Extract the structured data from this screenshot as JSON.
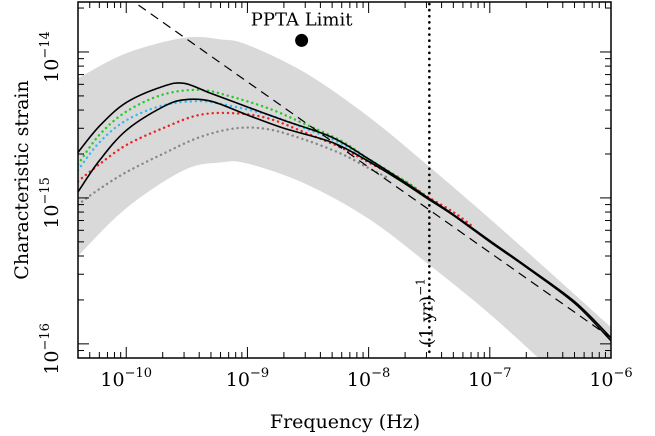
{
  "chart_data": {
    "type": "line",
    "xlabel": "Frequency (Hz)",
    "ylabel": "Characteristic strain",
    "xscale": "log",
    "yscale": "log",
    "xlim": [
      4e-11,
      1e-06
    ],
    "ylim": [
      8e-17,
      2.2e-14
    ],
    "grid": false,
    "x_ticks": [
      {
        "value": 1e-10,
        "base": "10",
        "exp": "−10"
      },
      {
        "value": 1e-09,
        "base": "10",
        "exp": "−9"
      },
      {
        "value": 1e-08,
        "base": "10",
        "exp": "−8"
      },
      {
        "value": 1e-07,
        "base": "10",
        "exp": "−7"
      },
      {
        "value": 1e-06,
        "base": "10",
        "exp": "−6"
      }
    ],
    "y_ticks": [
      {
        "value": 1e-16,
        "base": "10",
        "exp": "−16"
      },
      {
        "value": 1e-15,
        "base": "10",
        "exp": "−15"
      },
      {
        "value": 1e-14,
        "base": "10",
        "exp": "−14"
      }
    ],
    "colors": {
      "band": "#d9d9d9",
      "curve": "#000000",
      "green": "#22cc22",
      "cyan": "#33bbee",
      "red": "#ee2222",
      "gray": "#888888"
    },
    "band": {
      "x": [
        4e-11,
        1e-10,
        3e-10,
        6e-10,
        1e-09,
        3e-09,
        1e-08,
        3e-08,
        1e-07,
        3e-07,
        1e-06
      ],
      "upper": [
        6.6e-15,
        9.8e-15,
        1.25e-14,
        1.22e-14,
        1.12e-14,
        7.2e-15,
        3.6e-15,
        1.7e-15,
        7.2e-16,
        3.2e-16,
        1.3e-16
      ],
      "lower": [
        4e-16,
        8.5e-16,
        1.55e-15,
        1.75e-15,
        1.72e-15,
        1.25e-15,
        7.2e-16,
        3.6e-16,
        1.6e-16,
        7e-17,
        2.8e-17
      ]
    },
    "series": [
      {
        "x": [
          4e-11,
          6e-11,
          1e-10,
          2e-10,
          3e-10,
          5e-10,
          1e-09,
          2e-09,
          5e-09,
          1e-08,
          2e-08,
          3e-08,
          5e-08,
          1e-07,
          2e-07,
          5e-07,
          1e-06
        ],
        "values": [
          2.05e-15,
          3.1e-15,
          4.5e-15,
          5.8e-15,
          6.1e-15,
          5.2e-15,
          4.2e-15,
          3.4e-15,
          2.6e-15,
          1.85e-15,
          1.28e-15,
          1.02e-15,
          7.7e-16,
          5.1e-16,
          3.4e-16,
          1.95e-16,
          1.1e-16
        ],
        "style": "solid",
        "color": "#000000"
      },
      {
        "x": [
          4e-11,
          6e-11,
          1e-10,
          2e-10,
          3e-10,
          5e-10,
          1e-09,
          2e-09,
          5e-09,
          1e-08,
          2e-08,
          3e-08,
          5e-08,
          1e-07,
          2e-07,
          5e-07,
          1e-06
        ],
        "values": [
          1.1e-15,
          1.8e-15,
          2.9e-15,
          4.2e-15,
          4.7e-15,
          4.6e-15,
          3.7e-15,
          3e-15,
          2.4e-15,
          1.78e-15,
          1.25e-15,
          1e-15,
          7.6e-16,
          5e-16,
          3.35e-16,
          1.9e-16,
          1.05e-16
        ],
        "style": "solid",
        "color": "#000000"
      },
      {
        "x": [
          4e-11,
          6e-11,
          1e-10,
          2e-10,
          4e-10,
          7e-10,
          1.5e-09,
          3e-09,
          6e-09,
          1e-08,
          2e-08,
          3e-08
        ],
        "values": [
          1.7e-15,
          2.7e-15,
          3.9e-15,
          5.1e-15,
          5.5e-15,
          5e-15,
          4.1e-15,
          3.2e-15,
          2.45e-15,
          1.85e-15,
          1.3e-15,
          1.02e-15
        ],
        "style": "dotted",
        "color": "#22cc22"
      },
      {
        "x": [
          4e-11,
          6e-11,
          1e-10,
          2e-10,
          4e-10,
          7e-10,
          1.5e-09,
          3e-09,
          6e-09,
          1e-08,
          2e-08,
          3e-08
        ],
        "values": [
          1.55e-15,
          2.4e-15,
          3.4e-15,
          4.3e-15,
          4.6e-15,
          4.3e-15,
          3.7e-15,
          3e-15,
          2.35e-15,
          1.8e-15,
          1.28e-15,
          1.01e-15
        ],
        "style": "dotted",
        "color": "#33bbee"
      },
      {
        "x": [
          4e-11,
          6e-11,
          1e-10,
          2e-10,
          4e-10,
          8e-10,
          1.5e-09,
          3e-09,
          6e-09,
          1e-08,
          2e-08,
          3e-08,
          5e-08,
          7e-08
        ],
        "values": [
          1.3e-15,
          1.7e-15,
          2.3e-15,
          3e-15,
          3.7e-15,
          3.8e-15,
          3.5e-15,
          2.8e-15,
          2.2e-15,
          1.75e-15,
          1.3e-15,
          1.03e-15,
          8e-16,
          6.5e-16
        ],
        "style": "dotted",
        "color": "#ee2222"
      },
      {
        "x": [
          4e-11,
          6e-11,
          1e-10,
          2e-10,
          4e-10,
          8e-10,
          1.5e-09,
          3e-09,
          6e-09,
          1e-08,
          1.5e-08
        ],
        "values": [
          9e-16,
          1.15e-15,
          1.5e-15,
          2e-15,
          2.6e-15,
          3e-15,
          2.95e-15,
          2.5e-15,
          2e-15,
          1.6e-15,
          1.35e-15
        ],
        "style": "dotted",
        "color": "#888888"
      },
      {
        "x": [
          1e-10,
          1e-06
        ],
        "values": [
          2.4e-14,
          1.1e-16
        ],
        "style": "dashed",
        "color": "#000000"
      }
    ],
    "point": {
      "x": 2.8e-09,
      "y": 1.2e-14,
      "label": "PPTA Limit"
    },
    "vline": {
      "x": 3.17e-08,
      "label_base": "(1 yr)",
      "label_exp": "−1"
    }
  }
}
